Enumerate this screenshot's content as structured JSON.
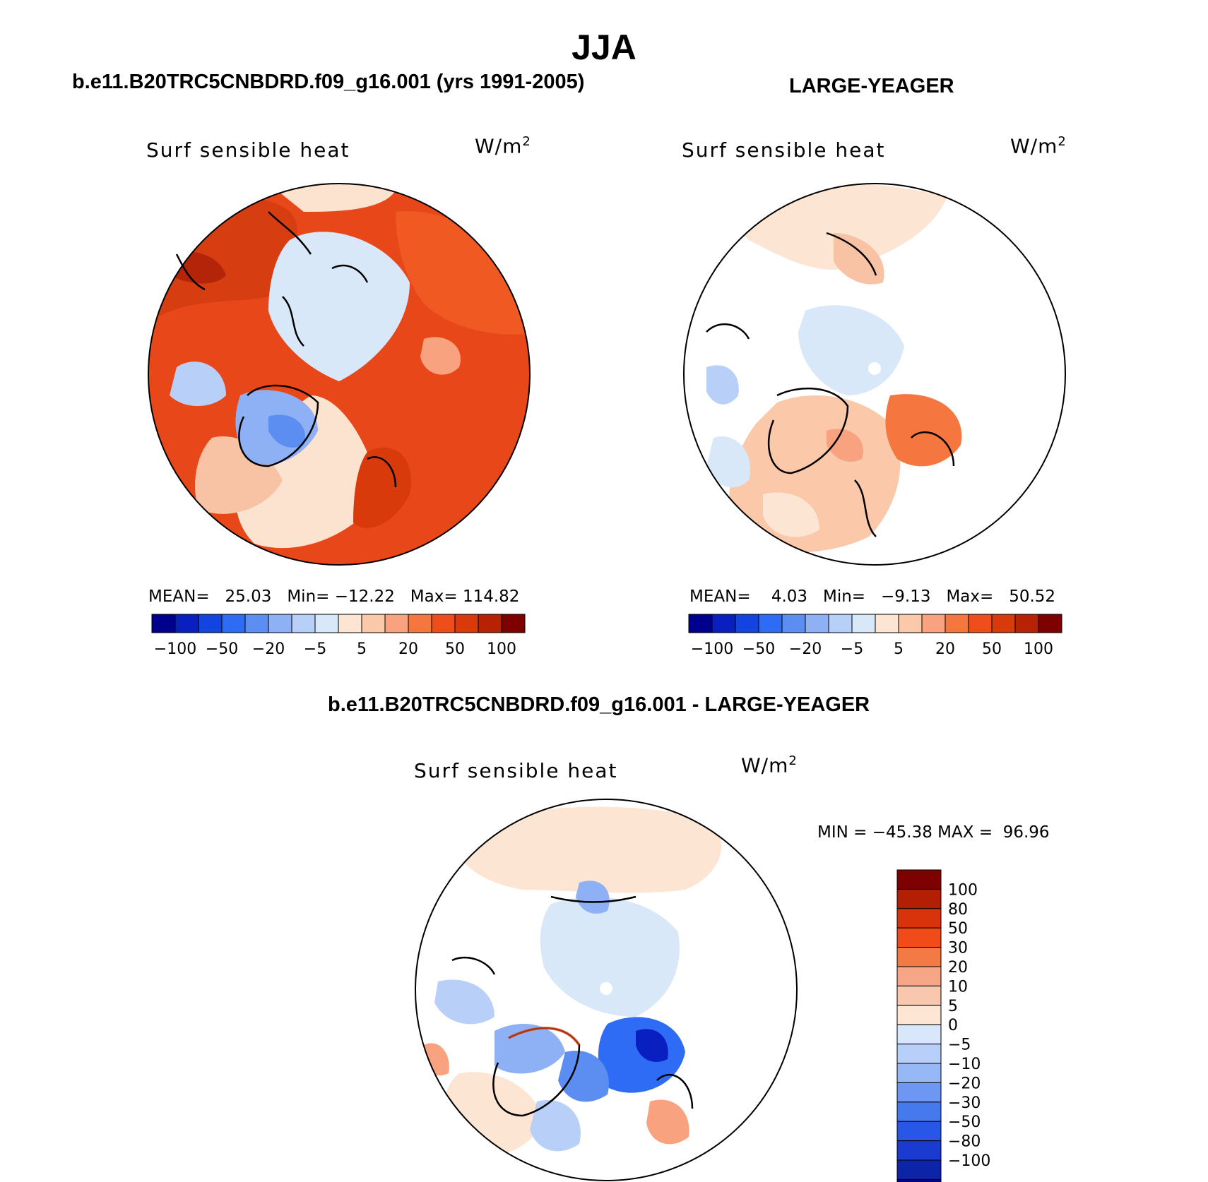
{
  "figure": {
    "title": "JJA"
  },
  "panels": [
    {
      "id": "panel-model",
      "title": "b.e11.B20TRC5CNBDRD.f09_g16.001 (yrs 1991-2005)",
      "variable": "Surf sensible heat",
      "units_base": "W/m",
      "units_exp": "2",
      "stats": {
        "mean_label": "MEAN=",
        "mean": "25.03",
        "min_label": "Min=",
        "min": "−12.22",
        "max_label": "Max=",
        "max": "114.82"
      }
    },
    {
      "id": "panel-obs",
      "title": "LARGE-YEAGER",
      "variable": "Surf sensible heat",
      "units_base": "W/m",
      "units_exp": "2",
      "stats": {
        "mean_label": "MEAN=",
        "mean": "4.03",
        "min_label": "Min=",
        "min": "−9.13",
        "max_label": "Max=",
        "max": "50.52"
      }
    },
    {
      "id": "panel-diff",
      "title": "b.e11.B20TRC5CNBDRD.f09_g16.001 - LARGE-YEAGER",
      "variable": "Surf sensible heat",
      "units_base": "W/m",
      "units_exp": "2",
      "stats": {
        "min_label": "MIN =",
        "min": "−45.38",
        "max_label": "MAX =",
        "max": "96.96"
      }
    }
  ],
  "chart_data": {
    "type": "heatmap",
    "projection": "north polar stereographic",
    "horizontal_colorbar": {
      "colors": [
        "#00008f",
        "#0a1fbf",
        "#1444e0",
        "#2f6cf5",
        "#5b8ef0",
        "#8eb0f5",
        "#b8cff8",
        "#d8e8f8",
        "#fde5d3",
        "#fbc8aa",
        "#f8a27f",
        "#f5773f",
        "#ee4d1c",
        "#d83a0c",
        "#b82204",
        "#7f0000"
      ],
      "tick_labels": [
        "−100",
        "−50",
        "−20",
        "−5",
        "5",
        "20",
        "50",
        "100"
      ]
    },
    "vertical_colorbar": {
      "colors": [
        "#7f0000",
        "#b31e04",
        "#d8330a",
        "#f24b1a",
        "#f47a45",
        "#f7a587",
        "#f9c6ae",
        "#fde6d3",
        "#d8e8fa",
        "#b8cff9",
        "#97b8f7",
        "#6d97f2",
        "#4679ee",
        "#2857e8",
        "#1a3ad0",
        "#0e24a8",
        "#000a80"
      ],
      "tick_labels": [
        "100",
        "80",
        "50",
        "30",
        "20",
        "10",
        "5",
        "0",
        "−5",
        "−10",
        "−20",
        "−30",
        "−50",
        "−80",
        "−100"
      ]
    }
  }
}
